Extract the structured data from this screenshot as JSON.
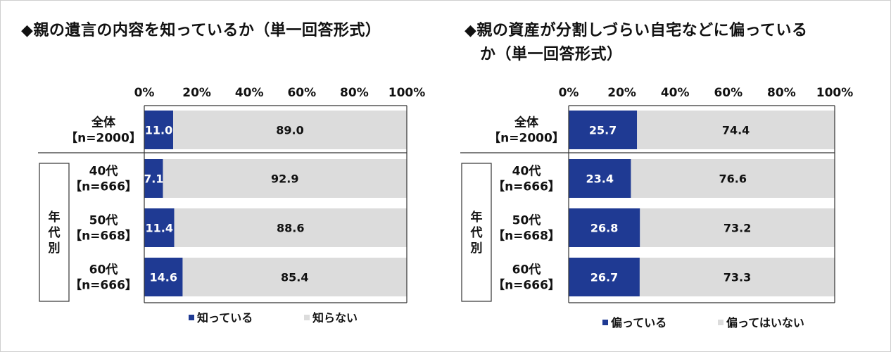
{
  "chart_data": [
    {
      "type": "bar",
      "orientation": "horizontal",
      "stacked": true,
      "title": "◆親の遺言の内容を知っているか（単一回答形式）",
      "title_lines": [
        "◆親の遺言の内容を知っているか（単一回答形式）"
      ],
      "categories": [
        {
          "line1": "全体",
          "line2": "【n=2000】"
        },
        {
          "line1": "40代",
          "line2": "【n=666】"
        },
        {
          "line1": "50代",
          "line2": "【n=668】"
        },
        {
          "line1": "60代",
          "line2": "【n=666】"
        }
      ],
      "group_label": "年代別",
      "series": [
        {
          "name": "知っている",
          "color": "#1f3a93",
          "label_color": "#ffffff",
          "values": [
            11.0,
            7.1,
            11.4,
            14.6
          ]
        },
        {
          "name": "知らない",
          "color": "#dcdcdc",
          "label_color": "#111111",
          "values": [
            89.0,
            92.9,
            88.6,
            85.4
          ]
        }
      ],
      "xlim": [
        0,
        100
      ],
      "x_ticks": [
        "0%",
        "20%",
        "40%",
        "60%",
        "80%",
        "100%"
      ],
      "legend_position": "bottom"
    },
    {
      "type": "bar",
      "orientation": "horizontal",
      "stacked": true,
      "title": "◆親の資産が分割しづらい自宅などに偏っているか（単一回答形式）",
      "title_lines": [
        "◆親の資産が分割しづらい自宅などに偏っている",
        "か（単一回答形式）"
      ],
      "categories": [
        {
          "line1": "全体",
          "line2": "【n=2000】"
        },
        {
          "line1": "40代",
          "line2": "【n=666】"
        },
        {
          "line1": "50代",
          "line2": "【n=668】"
        },
        {
          "line1": "60代",
          "line2": "【n=666】"
        }
      ],
      "group_label": "年代別",
      "series": [
        {
          "name": "偏っている",
          "color": "#1f3a93",
          "label_color": "#ffffff",
          "values": [
            25.7,
            23.4,
            26.8,
            26.7
          ]
        },
        {
          "name": "偏ってはいない",
          "color": "#dcdcdc",
          "label_color": "#111111",
          "values": [
            74.4,
            76.6,
            73.2,
            73.3
          ]
        }
      ],
      "xlim": [
        0,
        100
      ],
      "x_ticks": [
        "0%",
        "20%",
        "40%",
        "60%",
        "80%",
        "100%"
      ],
      "legend_position": "bottom"
    }
  ]
}
